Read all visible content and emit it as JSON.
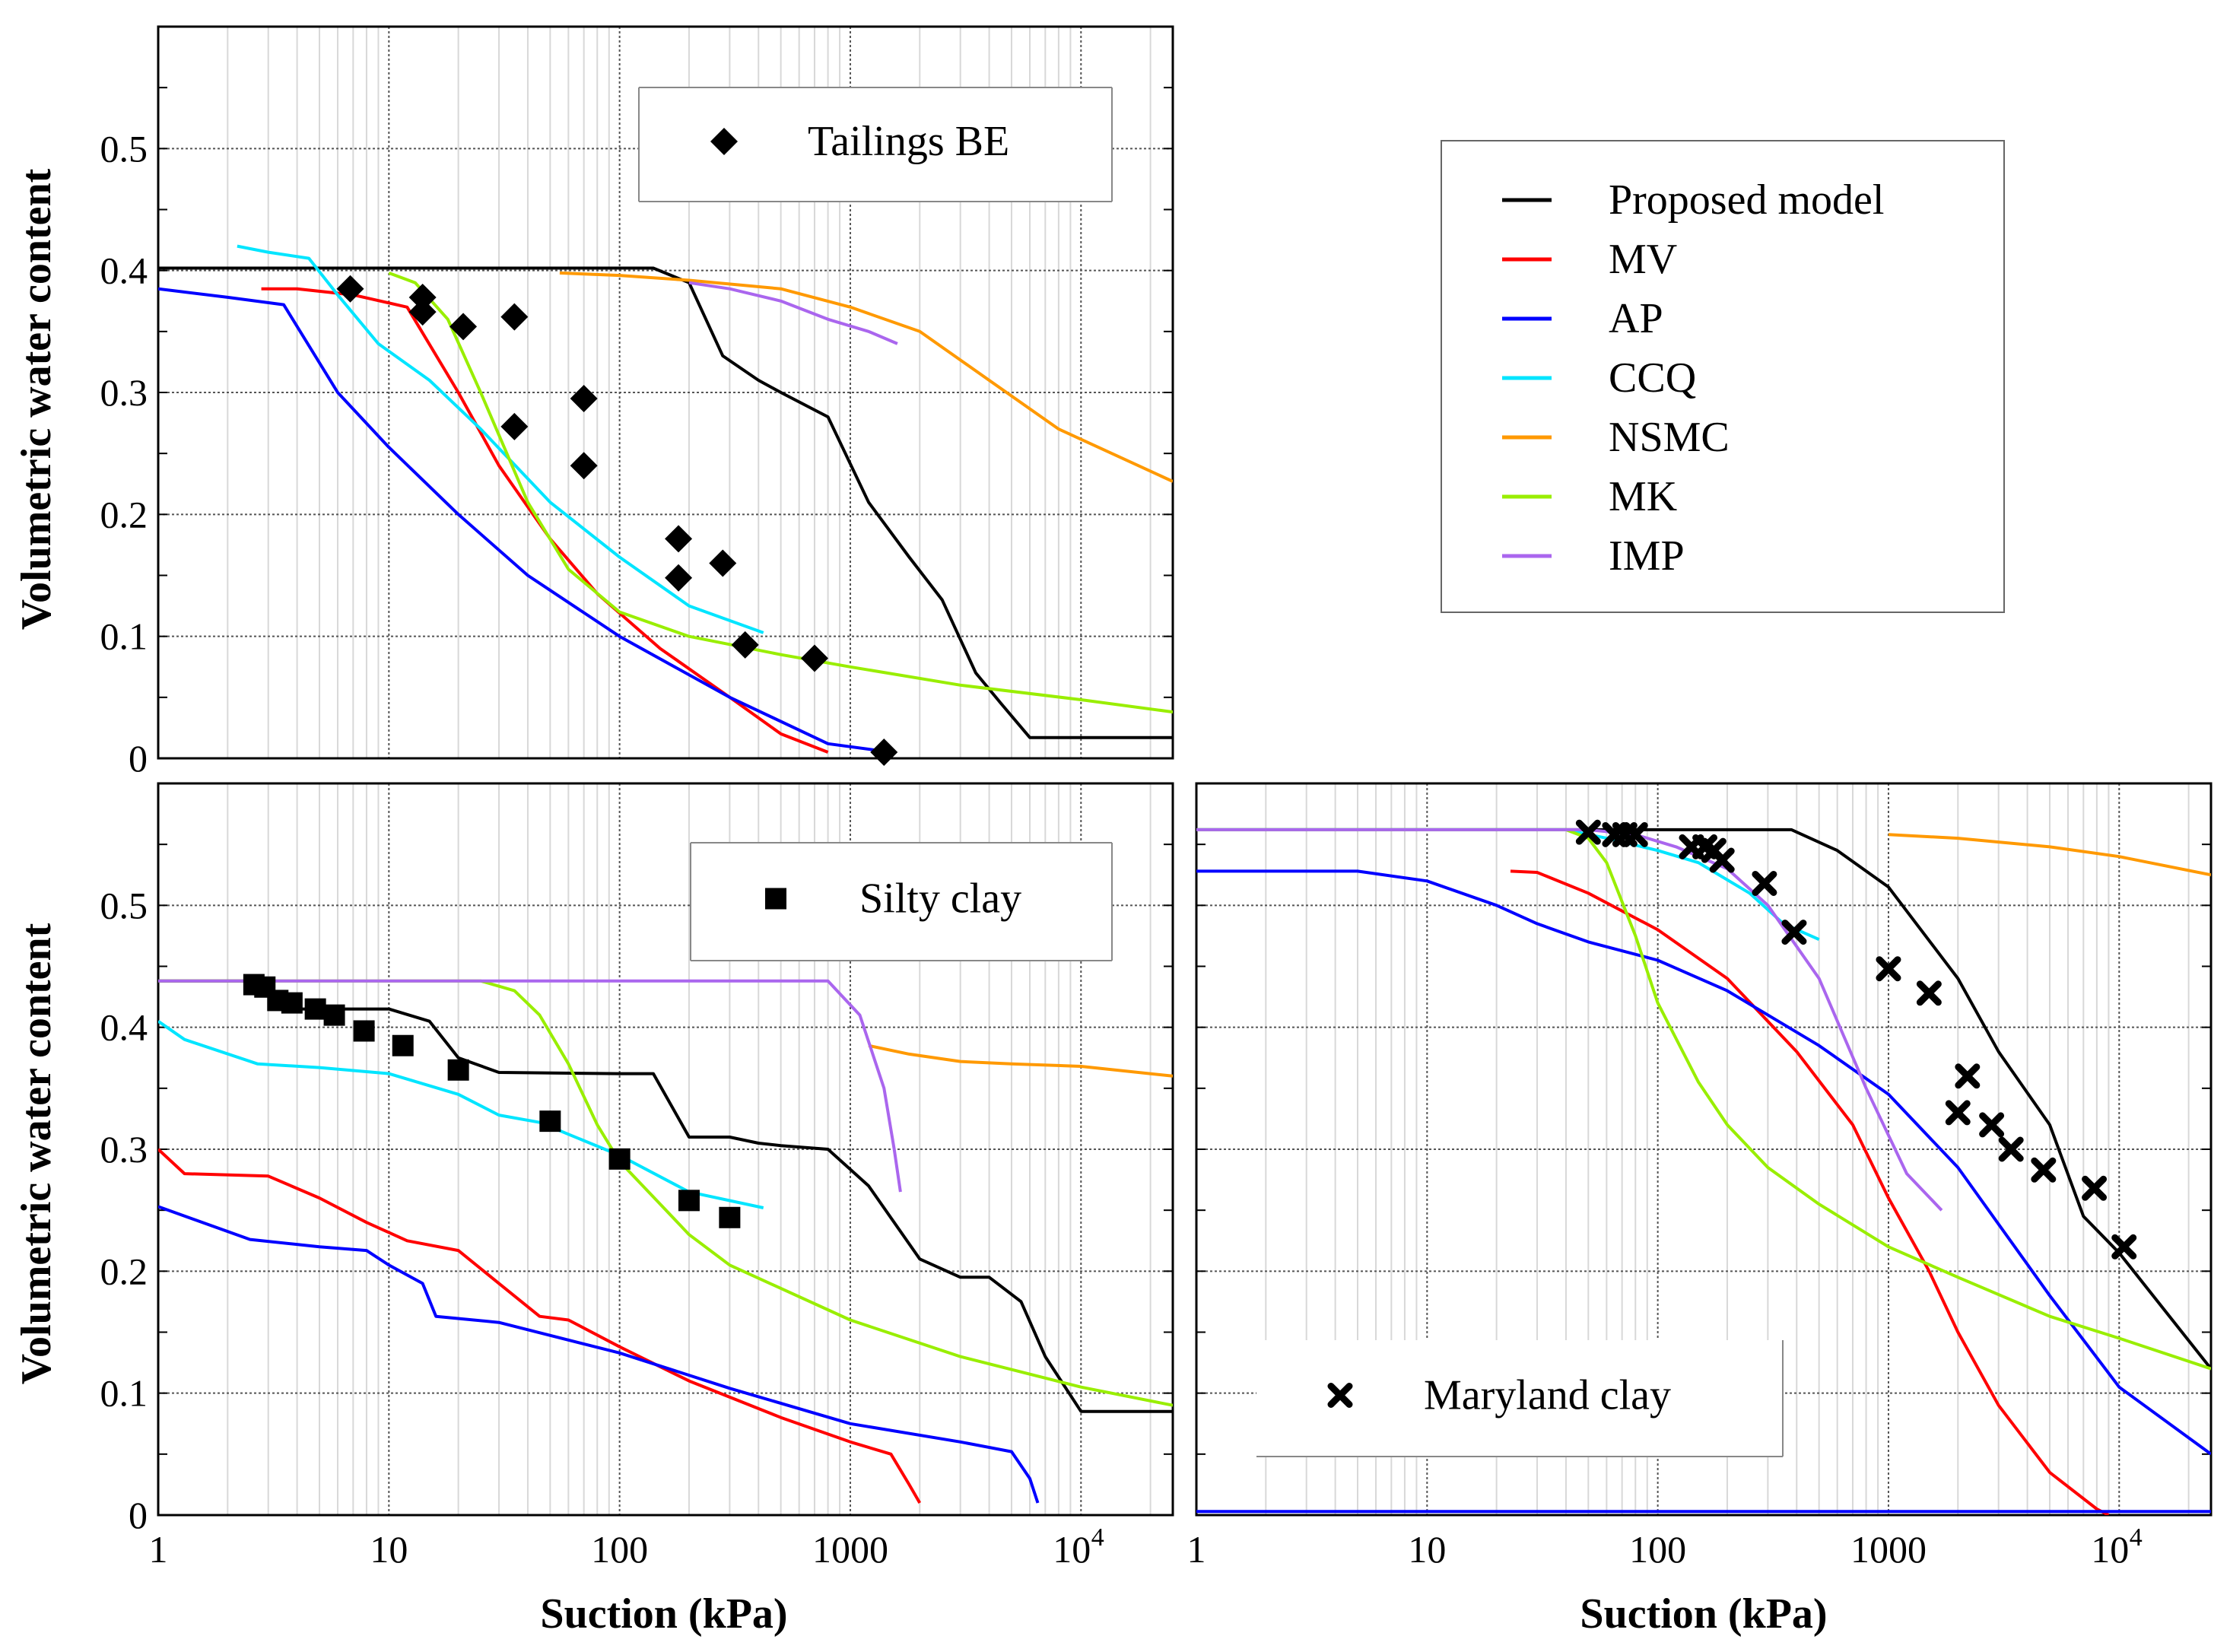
{
  "figure": {
    "y_label": "Volumetric water content",
    "x_label": "Suction (kPa)"
  },
  "model_legend": {
    "items": [
      {
        "label": "Proposed model",
        "color": "#000000"
      },
      {
        "label": "MV",
        "color": "#ff0000"
      },
      {
        "label": "AP",
        "color": "#0000ff"
      },
      {
        "label": "CCQ",
        "color": "#00e5ff"
      },
      {
        "label": "NSMC",
        "color": "#ff9900"
      },
      {
        "label": "MK",
        "color": "#99ee00"
      },
      {
        "label": "IMP",
        "color": "#aa66ee"
      }
    ]
  },
  "chart_data": [
    {
      "type": "line",
      "panel": "top-left",
      "title": "",
      "xlabel": "",
      "ylabel": "Volumetric water content",
      "xscale": "log",
      "xlim": [
        1,
        25000
      ],
      "ylim": [
        0,
        0.6
      ],
      "yticks": [
        "0",
        "0.1",
        "0.2",
        "0.3",
        "0.4",
        "0.5"
      ],
      "xticks": [],
      "grid": true,
      "legend": {
        "position": "top-center",
        "label": "Tailings BE",
        "marker": "diamond"
      },
      "measured": {
        "name": "Tailings BE",
        "marker": "diamond",
        "x": [
          6.8,
          14,
          14,
          21,
          35,
          35,
          70,
          70,
          180,
          180,
          280,
          350,
          700,
          1400
        ],
        "y": [
          0.385,
          0.378,
          0.366,
          0.354,
          0.362,
          0.272,
          0.295,
          0.24,
          0.18,
          0.148,
          0.16,
          0.093,
          0.082,
          0.005
        ]
      },
      "series": [
        {
          "name": "Proposed model",
          "color": "#000000",
          "x": [
            1,
            50,
            140,
            200,
            280,
            400,
            500,
            800,
            1200,
            1800,
            2500,
            3500,
            4500,
            6000,
            25000
          ],
          "y": [
            0.402,
            0.402,
            0.402,
            0.39,
            0.33,
            0.31,
            0.3,
            0.28,
            0.21,
            0.165,
            0.13,
            0.07,
            0.045,
            0.017,
            0.017
          ]
        },
        {
          "name": "MV",
          "color": "#ff0000",
          "x": [
            2.8,
            4,
            7,
            12,
            20,
            30,
            50,
            80,
            150,
            300,
            500,
            800
          ],
          "y": [
            0.385,
            0.385,
            0.38,
            0.37,
            0.3,
            0.24,
            0.18,
            0.135,
            0.09,
            0.05,
            0.02,
            0.005
          ]
        },
        {
          "name": "AP",
          "color": "#0000ff",
          "x": [
            1,
            2,
            3.5,
            6,
            10,
            20,
            40,
            100,
            300,
            800,
            1500
          ],
          "y": [
            0.385,
            0.378,
            0.372,
            0.3,
            0.255,
            0.2,
            0.15,
            0.1,
            0.05,
            0.012,
            0.005
          ]
        },
        {
          "name": "CCQ",
          "color": "#00e5ff",
          "x": [
            2.2,
            3,
            4.5,
            6,
            9,
            15,
            25,
            50,
            100,
            200,
            420
          ],
          "y": [
            0.42,
            0.415,
            0.41,
            0.38,
            0.34,
            0.31,
            0.27,
            0.21,
            0.165,
            0.125,
            0.103
          ]
        },
        {
          "name": "NSMC",
          "color": "#ff9900",
          "x": [
            55,
            100,
            200,
            500,
            1000,
            2000,
            4000,
            8000,
            25000
          ],
          "y": [
            0.398,
            0.396,
            0.392,
            0.385,
            0.37,
            0.35,
            0.31,
            0.27,
            0.227
          ]
        },
        {
          "name": "MK",
          "color": "#99ee00",
          "x": [
            10,
            13,
            18,
            25,
            40,
            60,
            100,
            200,
            500,
            1000,
            3000,
            10000,
            25000
          ],
          "y": [
            0.398,
            0.39,
            0.36,
            0.3,
            0.21,
            0.155,
            0.12,
            0.1,
            0.085,
            0.075,
            0.06,
            0.048,
            0.038
          ]
        },
        {
          "name": "IMP",
          "color": "#aa66ee",
          "x": [
            200,
            300,
            500,
            800,
            1200,
            1600
          ],
          "y": [
            0.39,
            0.385,
            0.375,
            0.36,
            0.35,
            0.34
          ]
        }
      ]
    },
    {
      "type": "line",
      "panel": "bottom-left",
      "title": "",
      "xlabel": "Suction (kPa)",
      "ylabel": "Volumetric water content",
      "xscale": "log",
      "xlim": [
        1,
        25000
      ],
      "ylim": [
        0,
        0.6
      ],
      "yticks": [
        "0",
        "0.1",
        "0.2",
        "0.3",
        "0.4",
        "0.5"
      ],
      "xticks": [
        "1",
        "10",
        "100",
        "1000",
        "10^4"
      ],
      "grid": true,
      "legend": {
        "position": "top-right",
        "label": "Silty clay",
        "marker": "square"
      },
      "measured": {
        "name": "Silty clay",
        "marker": "square",
        "x": [
          2.6,
          2.9,
          3.3,
          3.8,
          4.8,
          5.8,
          7.8,
          11.5,
          20,
          50,
          100,
          200,
          300
        ],
        "y": [
          0.435,
          0.433,
          0.422,
          0.42,
          0.415,
          0.41,
          0.397,
          0.385,
          0.365,
          0.323,
          0.292,
          0.258,
          0.244
        ]
      },
      "series": [
        {
          "name": "Proposed model",
          "color": "#000000",
          "x": [
            1,
            2.5,
            3.5,
            8,
            10,
            15,
            20,
            30,
            100,
            140,
            200,
            300,
            400,
            500,
            800,
            1200,
            2000,
            3000,
            4000,
            5500,
            7000,
            10000,
            25000
          ],
          "y": [
            0.438,
            0.438,
            0.415,
            0.415,
            0.415,
            0.405,
            0.375,
            0.363,
            0.362,
            0.362,
            0.31,
            0.31,
            0.305,
            0.303,
            0.3,
            0.27,
            0.21,
            0.195,
            0.195,
            0.175,
            0.13,
            0.085,
            0.085
          ]
        },
        {
          "name": "MV",
          "color": "#ff0000",
          "x": [
            1,
            1.3,
            3,
            5,
            8,
            12,
            20,
            30,
            45,
            60,
            100,
            200,
            500,
            1000,
            1500,
            1800,
            2000
          ],
          "y": [
            0.3,
            0.28,
            0.278,
            0.26,
            0.24,
            0.225,
            0.217,
            0.19,
            0.163,
            0.16,
            0.138,
            0.11,
            0.08,
            0.06,
            0.05,
            0.025,
            0.01
          ]
        },
        {
          "name": "AP",
          "color": "#0000ff",
          "x": [
            1,
            2.5,
            5,
            8,
            10,
            14,
            16,
            30,
            100,
            300,
            1000,
            3000,
            5000,
            6000,
            6500
          ],
          "y": [
            0.253,
            0.226,
            0.22,
            0.217,
            0.205,
            0.19,
            0.163,
            0.158,
            0.133,
            0.104,
            0.075,
            0.06,
            0.052,
            0.03,
            0.01
          ]
        },
        {
          "name": "CCQ",
          "color": "#00e5ff",
          "x": [
            1,
            1.3,
            2.7,
            5,
            10,
            20,
            30,
            45,
            100,
            200,
            420
          ],
          "y": [
            0.405,
            0.39,
            0.37,
            0.367,
            0.362,
            0.345,
            0.328,
            0.322,
            0.295,
            0.265,
            0.252
          ]
        },
        {
          "name": "NSMC",
          "color": "#ff9900",
          "x": [
            1200,
            1800,
            3000,
            5000,
            10000,
            25000
          ],
          "y": [
            0.385,
            0.378,
            0.372,
            0.37,
            0.368,
            0.36
          ]
        },
        {
          "name": "MK",
          "color": "#99ee00",
          "x": [
            1,
            25,
            35,
            45,
            60,
            80,
            100,
            150,
            200,
            300,
            1000,
            3000,
            10000,
            25000
          ],
          "y": [
            0.438,
            0.438,
            0.43,
            0.41,
            0.37,
            0.32,
            0.29,
            0.255,
            0.23,
            0.205,
            0.16,
            0.13,
            0.105,
            0.09
          ]
        },
        {
          "name": "IMP",
          "color": "#aa66ee",
          "x": [
            1,
            800,
            1100,
            1400,
            1550,
            1650
          ],
          "y": [
            0.438,
            0.438,
            0.41,
            0.35,
            0.3,
            0.265
          ]
        }
      ]
    },
    {
      "type": "line",
      "panel": "bottom-right",
      "title": "",
      "xlabel": "Suction (kPa)",
      "ylabel": "",
      "xscale": "log",
      "xlim": [
        1,
        25000
      ],
      "ylim": [
        0,
        0.6
      ],
      "yticks": [],
      "xticks": [
        "1",
        "10",
        "100",
        "1000",
        "10^4"
      ],
      "grid": true,
      "legend": {
        "position": "bottom-center",
        "label": "Maryland clay",
        "marker": "cross"
      },
      "measured": {
        "name": "Maryland clay",
        "marker": "cross",
        "x": [
          50,
          65,
          72,
          80,
          140,
          160,
          175,
          190,
          290,
          390,
          1000,
          1500,
          2200,
          2000,
          2800,
          3400,
          4700,
          7800,
          10500
        ],
        "y": [
          0.56,
          0.558,
          0.558,
          0.558,
          0.548,
          0.548,
          0.545,
          0.537,
          0.518,
          0.478,
          0.448,
          0.428,
          0.36,
          0.33,
          0.32,
          0.3,
          0.283,
          0.268,
          0.22
        ]
      },
      "series": [
        {
          "name": "Proposed model",
          "color": "#000000",
          "x": [
            1,
            380,
            600,
            1000,
            2000,
            3000,
            5000,
            7000,
            10000,
            25000
          ],
          "y": [
            0.562,
            0.562,
            0.545,
            0.515,
            0.44,
            0.38,
            0.32,
            0.245,
            0.215,
            0.12
          ]
        },
        {
          "name": "MV",
          "color": "#ff0000",
          "x": [
            23,
            30,
            50,
            100,
            200,
            400,
            700,
            1000,
            1500,
            2000,
            3000,
            5000,
            8000,
            9000
          ],
          "y": [
            0.528,
            0.527,
            0.51,
            0.48,
            0.44,
            0.38,
            0.32,
            0.26,
            0.2,
            0.15,
            0.09,
            0.035,
            0.005,
            0.0
          ]
        },
        {
          "name": "AP",
          "color": "#0000ff",
          "x": [
            1,
            5,
            10,
            20,
            30,
            50,
            100,
            200,
            500,
            1000,
            2000,
            5000,
            10000,
            25000
          ],
          "y": [
            0.528,
            0.528,
            0.52,
            0.5,
            0.485,
            0.47,
            0.455,
            0.43,
            0.385,
            0.345,
            0.285,
            0.18,
            0.105,
            0.05
          ]
        },
        {
          "name": "AP (residual)",
          "color": "#0000ff",
          "x": [
            1,
            25000
          ],
          "y": [
            0.003,
            0.003
          ]
        },
        {
          "name": "CCQ",
          "color": "#00e5ff",
          "x": [
            1,
            40,
            60,
            100,
            150,
            250,
            350,
            500
          ],
          "y": [
            0.562,
            0.562,
            0.555,
            0.545,
            0.535,
            0.51,
            0.485,
            0.472
          ]
        },
        {
          "name": "NSMC",
          "color": "#ff9900",
          "x": [
            1000,
            2000,
            5000,
            10000,
            25000
          ],
          "y": [
            0.558,
            0.555,
            0.548,
            0.54,
            0.525
          ]
        },
        {
          "name": "MK",
          "color": "#99ee00",
          "x": [
            1,
            40,
            50,
            60,
            80,
            100,
            150,
            200,
            300,
            500,
            1000,
            2000,
            5000,
            10000,
            25000
          ],
          "y": [
            0.562,
            0.562,
            0.555,
            0.535,
            0.475,
            0.42,
            0.355,
            0.32,
            0.285,
            0.255,
            0.22,
            0.195,
            0.163,
            0.145,
            0.12
          ]
        },
        {
          "name": "IMP",
          "color": "#aa66ee",
          "x": [
            1,
            50,
            80,
            120,
            200,
            300,
            500,
            800,
            1200,
            1700
          ],
          "y": [
            0.562,
            0.562,
            0.558,
            0.548,
            0.53,
            0.5,
            0.44,
            0.35,
            0.28,
            0.25
          ]
        }
      ]
    }
  ]
}
